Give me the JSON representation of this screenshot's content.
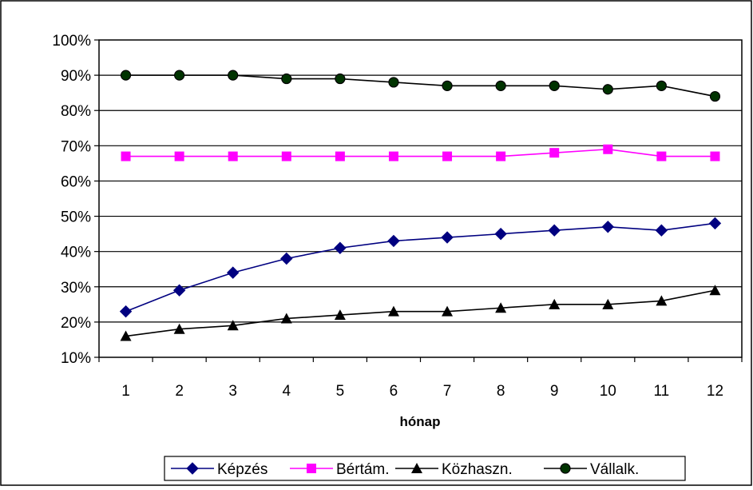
{
  "chart_data": {
    "type": "line",
    "title": "",
    "xlabel": "hónap",
    "ylabel": "",
    "x": [
      1,
      2,
      3,
      4,
      5,
      6,
      7,
      8,
      9,
      10,
      11,
      12
    ],
    "xtick_labels": [
      "1",
      "2",
      "3",
      "4",
      "5",
      "6",
      "7",
      "8",
      "9",
      "10",
      "11",
      "12"
    ],
    "ylim": [
      10,
      100
    ],
    "yticks": [
      10,
      20,
      30,
      40,
      50,
      60,
      70,
      80,
      90,
      100
    ],
    "ytick_labels": [
      "10%",
      "20%",
      "30%",
      "40%",
      "50%",
      "60%",
      "70%",
      "80%",
      "90%",
      "100%"
    ],
    "grid": "horizontal",
    "legend_position": "bottom",
    "series": [
      {
        "name": "Képzés",
        "color": "#000080",
        "marker": "diamond",
        "values": [
          23,
          29,
          34,
          38,
          41,
          43,
          44,
          45,
          46,
          47,
          46,
          48
        ]
      },
      {
        "name": "Bértám.",
        "color": "#ff00ff",
        "marker": "square",
        "values": [
          67,
          67,
          67,
          67,
          67,
          67,
          67,
          67,
          68,
          69,
          67,
          67
        ]
      },
      {
        "name": "Közhaszn.",
        "color": "#000000",
        "marker": "triangle",
        "values": [
          16,
          18,
          19,
          21,
          22,
          23,
          23,
          24,
          25,
          25,
          26,
          29
        ]
      },
      {
        "name": "Vállalk.",
        "color": "#000000",
        "marker_fill": "#003300",
        "marker": "circle",
        "values": [
          90,
          90,
          90,
          89,
          89,
          88,
          87,
          87,
          87,
          86,
          87,
          84
        ]
      }
    ]
  }
}
